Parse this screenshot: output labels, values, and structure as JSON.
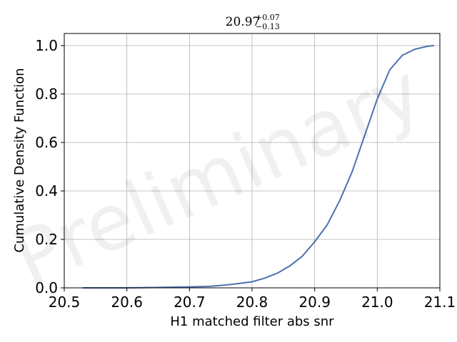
{
  "chart_data": {
    "type": "line",
    "title": {
      "base": "20.97",
      "sup": "+0.07",
      "sub": "−0.13"
    },
    "xlabel": "H1 matched filter abs snr",
    "ylabel": "Cumulative Density Function",
    "xlim": [
      20.5,
      21.1
    ],
    "ylim": [
      0.0,
      1.05
    ],
    "xticks": [
      "20.5",
      "20.6",
      "20.7",
      "20.8",
      "20.9",
      "21.0",
      "21.1"
    ],
    "yticks": [
      "0.0",
      "0.2",
      "0.4",
      "0.6",
      "0.8",
      "1.0"
    ],
    "grid": true,
    "watermark": "Preliminary",
    "colors": {
      "line": "#4c72b0",
      "grid": "#b0b0b0",
      "axes": "#000000"
    },
    "series": [
      {
        "x": [
          20.53,
          20.6,
          20.65,
          20.7,
          20.73,
          20.75,
          20.77,
          20.8,
          20.82,
          20.84,
          20.86,
          20.88,
          20.9,
          20.92,
          20.94,
          20.96,
          20.98,
          21.0,
          21.02,
          21.04,
          21.06,
          21.08,
          21.09
        ],
        "y": [
          0.0,
          0.0,
          0.002,
          0.004,
          0.006,
          0.01,
          0.015,
          0.025,
          0.04,
          0.06,
          0.09,
          0.13,
          0.19,
          0.26,
          0.36,
          0.48,
          0.63,
          0.78,
          0.9,
          0.96,
          0.985,
          0.997,
          1.0
        ]
      }
    ]
  }
}
